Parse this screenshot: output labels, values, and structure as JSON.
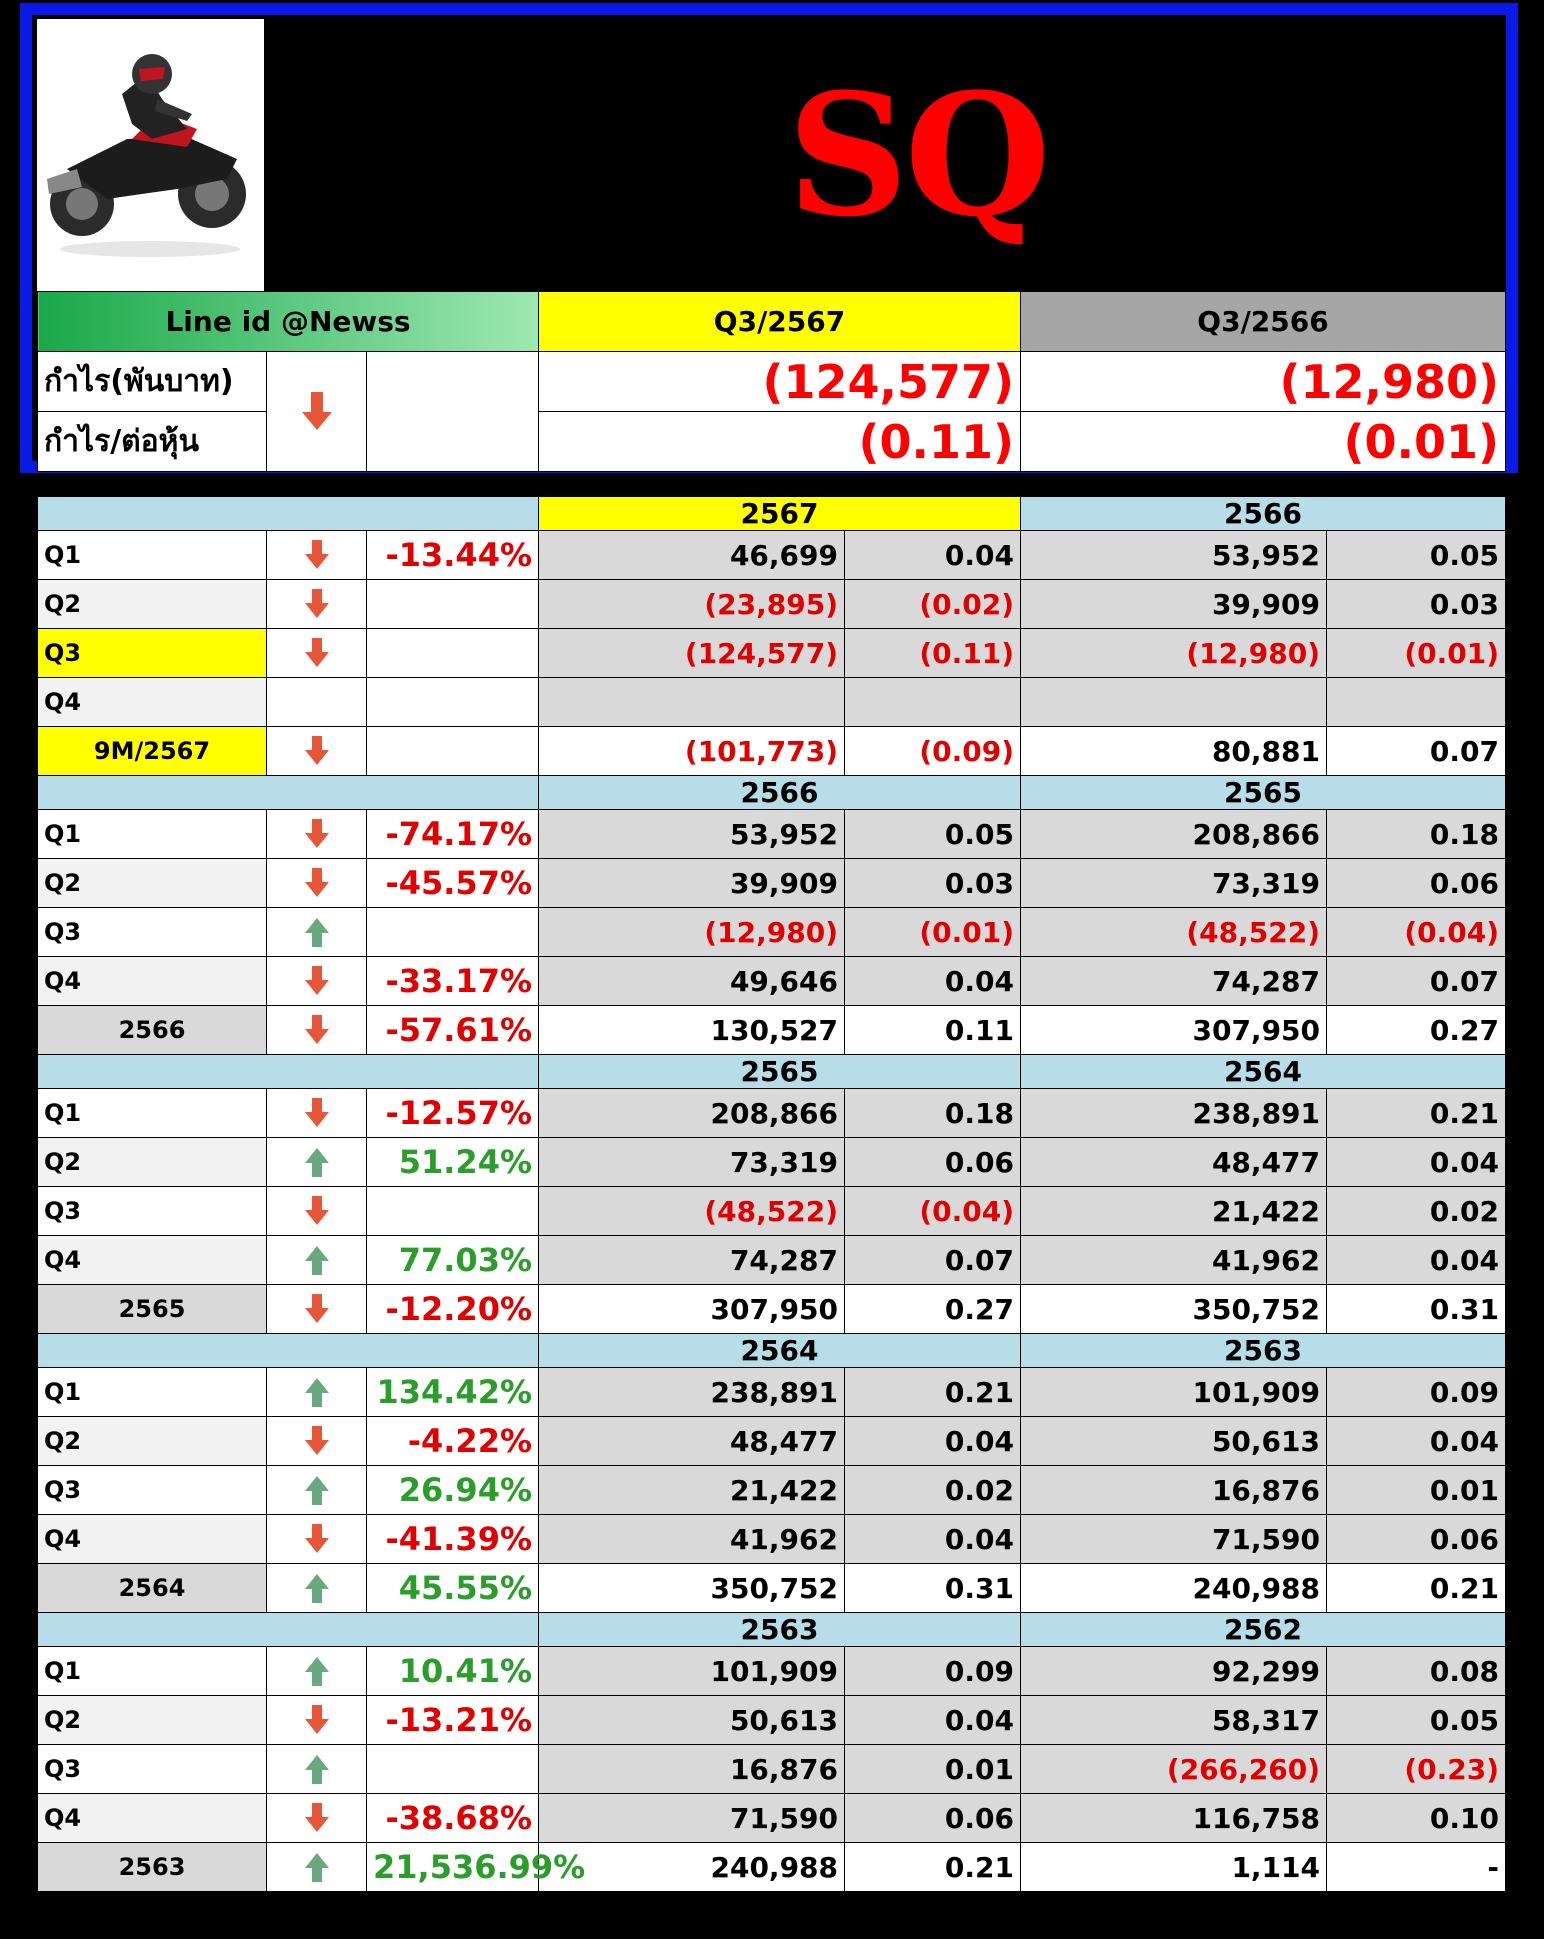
{
  "ticker": "SQ",
  "line_id": "Line id @Newss",
  "header_periods": [
    "Q3/2567",
    "Q3/2566"
  ],
  "summary": {
    "profit_label": "กำไร(พันบาท)",
    "eps_label": "กำไร/ต่อหุ้น",
    "trend": "down",
    "profit": [
      "(124,577)",
      "(12,980)"
    ],
    "eps": [
      "(0.11)",
      "(0.01)"
    ]
  },
  "colors": {
    "frame": "#0a19e6",
    "negative": "#ff0000",
    "positive": "#2a9d2a",
    "section": "#b7dee8",
    "highlight": "#ffff00"
  },
  "sections": [
    {
      "years": [
        "2567",
        "2566"
      ],
      "current_highlight": true,
      "rows": [
        {
          "label": "Q1",
          "arrow": "down",
          "pct": "-13.44%",
          "a": "46,699",
          "b": "0.04",
          "c": "53,952",
          "d": "0.05"
        },
        {
          "label": "Q2",
          "arrow": "down",
          "pct": "",
          "a": "(23,895)",
          "b": "(0.02)",
          "c": "39,909",
          "d": "0.03"
        },
        {
          "label": "Q3",
          "arrow": "down",
          "pct": "",
          "a": "(124,577)",
          "b": "(0.11)",
          "c": "(12,980)",
          "d": "(0.01)",
          "hl": true
        },
        {
          "label": "Q4",
          "arrow": "",
          "pct": "",
          "a": "",
          "b": "",
          "c": "",
          "d": ""
        },
        {
          "label": "9M/2567",
          "arrow": "down",
          "pct": "",
          "a": "(101,773)",
          "b": "(0.09)",
          "c": "80,881",
          "d": "0.07",
          "total": true,
          "hl": true
        }
      ]
    },
    {
      "years": [
        "2566",
        "2565"
      ],
      "rows": [
        {
          "label": "Q1",
          "arrow": "down",
          "pct": "-74.17%",
          "a": "53,952",
          "b": "0.05",
          "c": "208,866",
          "d": "0.18"
        },
        {
          "label": "Q2",
          "arrow": "down",
          "pct": "-45.57%",
          "a": "39,909",
          "b": "0.03",
          "c": "73,319",
          "d": "0.06"
        },
        {
          "label": "Q3",
          "arrow": "up",
          "pct": "",
          "a": "(12,980)",
          "b": "(0.01)",
          "c": "(48,522)",
          "d": "(0.04)"
        },
        {
          "label": "Q4",
          "arrow": "down",
          "pct": "-33.17%",
          "a": "49,646",
          "b": "0.04",
          "c": "74,287",
          "d": "0.07"
        },
        {
          "label": "2566",
          "arrow": "down",
          "pct": "-57.61%",
          "a": "130,527",
          "b": "0.11",
          "c": "307,950",
          "d": "0.27",
          "total": true
        }
      ]
    },
    {
      "years": [
        "2565",
        "2564"
      ],
      "rows": [
        {
          "label": "Q1",
          "arrow": "down",
          "pct": "-12.57%",
          "a": "208,866",
          "b": "0.18",
          "c": "238,891",
          "d": "0.21"
        },
        {
          "label": "Q2",
          "arrow": "up",
          "pct": "51.24%",
          "a": "73,319",
          "b": "0.06",
          "c": "48,477",
          "d": "0.04"
        },
        {
          "label": "Q3",
          "arrow": "down",
          "pct": "",
          "a": "(48,522)",
          "b": "(0.04)",
          "c": "21,422",
          "d": "0.02"
        },
        {
          "label": "Q4",
          "arrow": "up",
          "pct": "77.03%",
          "a": "74,287",
          "b": "0.07",
          "c": "41,962",
          "d": "0.04"
        },
        {
          "label": "2565",
          "arrow": "down",
          "pct": "-12.20%",
          "a": "307,950",
          "b": "0.27",
          "c": "350,752",
          "d": "0.31",
          "total": true
        }
      ]
    },
    {
      "years": [
        "2564",
        "2563"
      ],
      "rows": [
        {
          "label": "Q1",
          "arrow": "up",
          "pct": "134.42%",
          "a": "238,891",
          "b": "0.21",
          "c": "101,909",
          "d": "0.09"
        },
        {
          "label": "Q2",
          "arrow": "down",
          "pct": "-4.22%",
          "a": "48,477",
          "b": "0.04",
          "c": "50,613",
          "d": "0.04"
        },
        {
          "label": "Q3",
          "arrow": "up",
          "pct": "26.94%",
          "a": "21,422",
          "b": "0.02",
          "c": "16,876",
          "d": "0.01"
        },
        {
          "label": "Q4",
          "arrow": "down",
          "pct": "-41.39%",
          "a": "41,962",
          "b": "0.04",
          "c": "71,590",
          "d": "0.06"
        },
        {
          "label": "2564",
          "arrow": "up",
          "pct": "45.55%",
          "a": "350,752",
          "b": "0.31",
          "c": "240,988",
          "d": "0.21",
          "total": true
        }
      ]
    },
    {
      "years": [
        "2563",
        "2562"
      ],
      "rows": [
        {
          "label": "Q1",
          "arrow": "up",
          "pct": "10.41%",
          "a": "101,909",
          "b": "0.09",
          "c": "92,299",
          "d": "0.08"
        },
        {
          "label": "Q2",
          "arrow": "down",
          "pct": "-13.21%",
          "a": "50,613",
          "b": "0.04",
          "c": "58,317",
          "d": "0.05"
        },
        {
          "label": "Q3",
          "arrow": "up",
          "pct": "",
          "a": "16,876",
          "b": "0.01",
          "c": "(266,260)",
          "d": "(0.23)"
        },
        {
          "label": "Q4",
          "arrow": "down",
          "pct": "-38.68%",
          "a": "71,590",
          "b": "0.06",
          "c": "116,758",
          "d": "0.10"
        },
        {
          "label": "2563",
          "arrow": "up",
          "pct": "21,536.99%",
          "a": "240,988",
          "b": "0.21",
          "c": "1,114",
          "d": "-",
          "total": true
        }
      ]
    }
  ]
}
